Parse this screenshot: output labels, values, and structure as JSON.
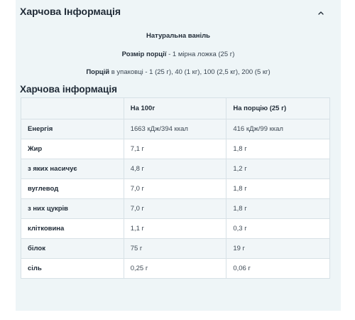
{
  "header": {
    "title": "Харчова Інформація",
    "collapse_icon": "chevron-up-icon"
  },
  "product": {
    "flavour": "Натуральна ваніль",
    "serving_label": "Розмір порції",
    "serving_value": " - 1 мірна ложка (25 г)",
    "servings_label": "Порцій",
    "servings_value": " в упаковці - 1 (25 г), 40 (1 кг), 100 (2,5 кг), 200 (5 кг)"
  },
  "section_title": "Харчова інформація",
  "table": {
    "headers": [
      "",
      "На 100г",
      "На порцію (25 г)"
    ],
    "rows": [
      [
        "Енергія",
        "1663 кДж/394 ккал",
        "416 кДж/99 ккал"
      ],
      [
        "Жир",
        "7,1 г",
        "1,8 г"
      ],
      [
        "з яких насичує",
        "4,8 г",
        "1,2 г"
      ],
      [
        "вуглевод",
        "7,0 г",
        "1,8 г"
      ],
      [
        "з них цукрів",
        "7,0 г",
        "1,8 г"
      ],
      [
        "клітковина",
        "1,1 г",
        "0,3 г"
      ],
      [
        "білок",
        "75 г",
        "19 г"
      ],
      [
        "сіль",
        "0,25 г",
        "0,06 г"
      ]
    ]
  }
}
